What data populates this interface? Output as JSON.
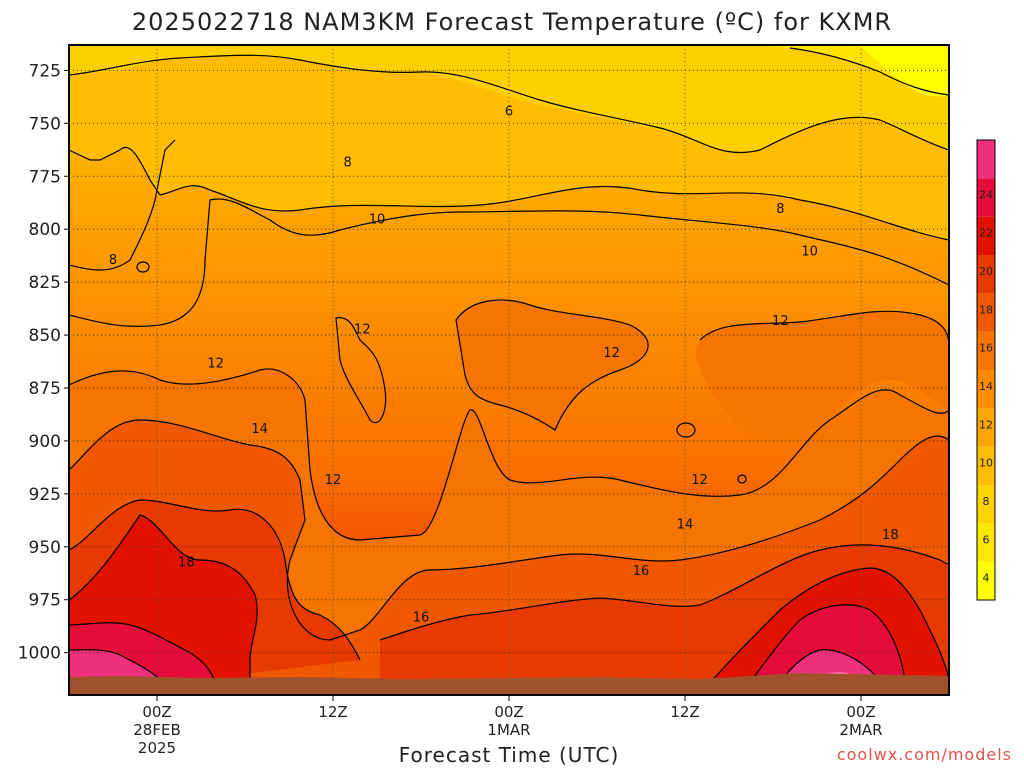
{
  "title": "2025022718 NAM3KM Forecast Temperature (ºC) for KXMR",
  "credit": "coolwx.com/models",
  "chart_data": {
    "type": "heatmap",
    "title": "2025022718 NAM3KM Forecast Temperature (ºC) for KXMR",
    "xlabel": "Forecast Time (UTC)",
    "ylabel": "",
    "y_ticks": [
      "725",
      "750",
      "775",
      "800",
      "825",
      "850",
      "875",
      "900",
      "925",
      "950",
      "975",
      "1000"
    ],
    "y_values": [
      725,
      750,
      775,
      800,
      825,
      850,
      875,
      900,
      925,
      950,
      975,
      1000
    ],
    "ylim": [
      713,
      1020
    ],
    "x_ticks": [
      {
        "line1": "00Z",
        "line2": "28FEB",
        "line3": "2025",
        "hour": 6
      },
      {
        "line1": "12Z",
        "line2": "",
        "line3": "",
        "hour": 18
      },
      {
        "line1": "00Z",
        "line2": "1MAR",
        "line3": "",
        "hour": 30
      },
      {
        "line1": "12Z",
        "line2": "",
        "line3": "",
        "hour": 42
      },
      {
        "line1": "00Z",
        "line2": "2MAR",
        "line3": "",
        "hour": 54
      }
    ],
    "xlim_hours": [
      0,
      60
    ],
    "colorbar_ticks": [
      "24",
      "22",
      "20",
      "18",
      "16",
      "14",
      "12",
      "10",
      "8",
      "6",
      "4"
    ],
    "colorbar_levels": [
      2,
      4,
      6,
      8,
      10,
      12,
      14,
      16,
      18,
      20,
      22,
      24,
      26
    ],
    "contour_labels": [
      {
        "text": "6",
        "hour": 30,
        "p": 744
      },
      {
        "text": "8",
        "hour": 19,
        "p": 768
      },
      {
        "text": "8",
        "hour": 3,
        "p": 814
      },
      {
        "text": "8",
        "hour": 48.5,
        "p": 790
      },
      {
        "text": "10",
        "hour": 21,
        "p": 795
      },
      {
        "text": "10",
        "hour": 50.5,
        "p": 810
      },
      {
        "text": "12",
        "hour": 10,
        "p": 863
      },
      {
        "text": "12",
        "hour": 20,
        "p": 847
      },
      {
        "text": "12",
        "hour": 37,
        "p": 858
      },
      {
        "text": "12",
        "hour": 48.5,
        "p": 843
      },
      {
        "text": "12",
        "hour": 18,
        "p": 918
      },
      {
        "text": "12",
        "hour": 43,
        "p": 918
      },
      {
        "text": "14",
        "hour": 13,
        "p": 894
      },
      {
        "text": "14",
        "hour": 42,
        "p": 939
      },
      {
        "text": "16",
        "hour": 39,
        "p": 961
      },
      {
        "text": "16",
        "hour": 24,
        "p": 983
      },
      {
        "text": "18",
        "hour": 8,
        "p": 957
      },
      {
        "text": "18",
        "hour": 56,
        "p": 944
      }
    ]
  },
  "colors": {
    "frame": "#000000",
    "ground": "#a0522d",
    "grid": "#777777"
  }
}
